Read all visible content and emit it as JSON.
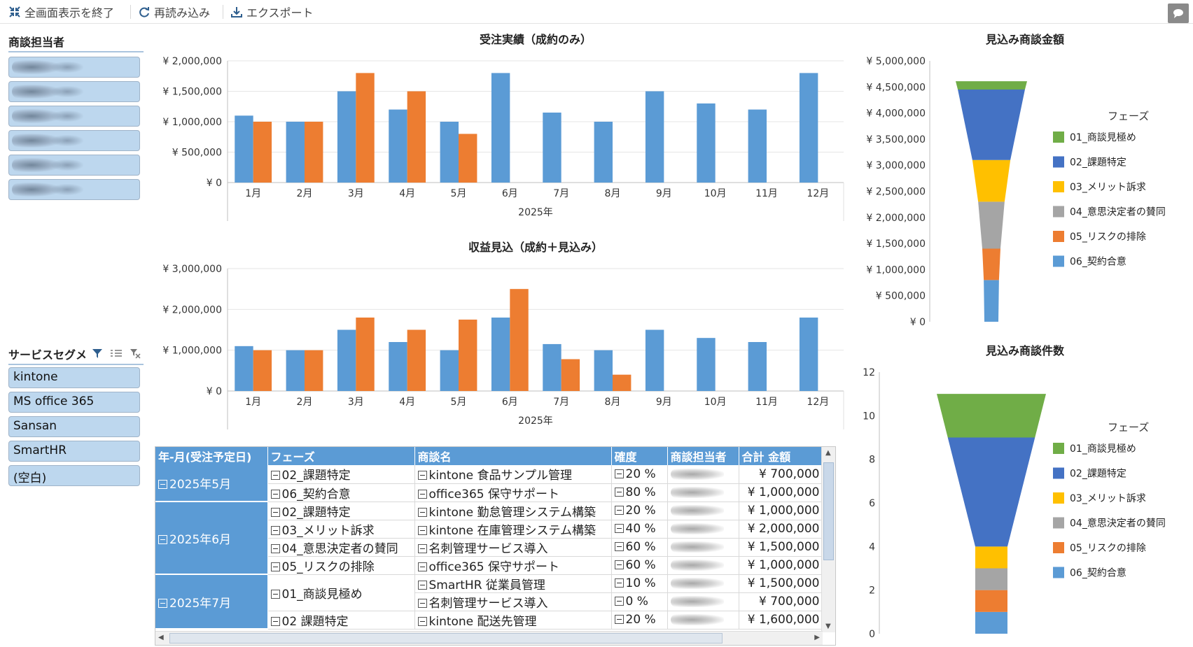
{
  "toolbar": {
    "exit_fullscreen": "全画面表示を終了",
    "reload": "再読み込み",
    "export": "エクスポート"
  },
  "slicer_rep": {
    "title": "商談担当者",
    "items_count_note": ""
  },
  "slicer_service": {
    "title": "サービスセグメ",
    "items": [
      "kintone",
      "MS office 365",
      "Sansan",
      "SmartHR",
      "(空白)"
    ]
  },
  "colors": {
    "blue": "#5b9bd5",
    "orange": "#ed7d31",
    "phase": [
      "#70ad47",
      "#4472c4",
      "#ffc000",
      "#a5a5a5",
      "#ed7d31",
      "#5b9bd5"
    ]
  },
  "chart_data": [
    {
      "type": "bar",
      "title": "受注実績（成約のみ）",
      "xlabel": "2025年",
      "categories": [
        "1月",
        "2月",
        "3月",
        "4月",
        "5月",
        "6月",
        "7月",
        "8月",
        "9月",
        "10月",
        "11月",
        "12月"
      ],
      "ytick_labels": [
        "¥ 0",
        "¥ 500,000",
        "¥ 1,000,000",
        "¥ 1,500,000",
        "¥ 2,000,000"
      ],
      "ylim": [
        0,
        2000000
      ],
      "series": [
        {
          "values": [
            1100000,
            1000000,
            1500000,
            1200000,
            1000000,
            1800000,
            1150000,
            1000000,
            1500000,
            1300000,
            1200000,
            1800000
          ]
        },
        {
          "values": [
            1000000,
            1000000,
            1800000,
            1500000,
            800000,
            0,
            0,
            0,
            0,
            0,
            0,
            0
          ]
        }
      ]
    },
    {
      "type": "bar",
      "title": "収益見込（成約＋見込み）",
      "xlabel": "2025年",
      "categories": [
        "1月",
        "2月",
        "3月",
        "4月",
        "5月",
        "6月",
        "7月",
        "8月",
        "9月",
        "10月",
        "11月",
        "12月"
      ],
      "ytick_labels": [
        "¥ 0",
        "¥ 1,000,000",
        "¥ 2,000,000",
        "¥ 3,000,000"
      ],
      "ylim": [
        0,
        3000000
      ],
      "series": [
        {
          "values": [
            1100000,
            1000000,
            1500000,
            1200000,
            1000000,
            1800000,
            1150000,
            1000000,
            1500000,
            1300000,
            1200000,
            1800000
          ]
        },
        {
          "values": [
            1000000,
            1000000,
            1800000,
            1500000,
            1750000,
            2500000,
            780000,
            400000,
            0,
            0,
            0,
            0
          ]
        }
      ]
    },
    {
      "type": "funnel",
      "title": "見込み商談金額",
      "legend_title": "フェーズ",
      "legend_position": "right",
      "ytick_labels": [
        "¥ 0",
        "¥ 500,000",
        "¥ 1,000,000",
        "¥ 1,500,000",
        "¥ 2,000,000",
        "¥ 2,500,000",
        "¥ 3,000,000",
        "¥ 3,500,000",
        "¥ 4,000,000",
        "¥ 4,500,000",
        "¥ 5,000,000"
      ],
      "ylim": [
        0,
        5000000
      ],
      "categories": [
        "06_契約合意",
        "05_リスクの排除",
        "04_意思決定者の賛同",
        "03_メリット訴求",
        "02_課題特定",
        "01_商談見極め"
      ],
      "values": [
        800000,
        600000,
        900000,
        800000,
        1350000,
        160000
      ]
    },
    {
      "type": "funnel",
      "title": "見込み商談件数",
      "legend_title": "フェーズ",
      "legend_position": "right",
      "ytick_labels": [
        "0",
        "2",
        "4",
        "6",
        "8",
        "10",
        "12"
      ],
      "ylim": [
        0,
        12
      ],
      "categories": [
        "06_契約合意",
        "05_リスクの排除",
        "04_意思決定者の賛同",
        "03_メリット訴求",
        "02_課題特定",
        "01_商談見極め"
      ],
      "values": [
        1,
        1,
        1,
        1,
        5,
        2
      ]
    }
  ],
  "legend": [
    "01_商談見極め",
    "02_課題特定",
    "03_メリット訴求",
    "04_意思決定者の賛同",
    "05_リスクの排除",
    "06_契約合意"
  ],
  "pivot": {
    "headers": [
      "年-月(受注予定日)",
      "フェーズ",
      "商談名",
      "確度",
      "商談担当者",
      "合計 金額"
    ],
    "groups": [
      {
        "month": "2025年5月",
        "rows": [
          {
            "phase": "02_課題特定",
            "name": "kintone 食品サンプル管理",
            "prob": "20 %",
            "amount": "¥ 700,000"
          },
          {
            "phase": "06_契約合意",
            "name": "office365 保守サポート",
            "prob": "80 %",
            "amount": "¥ 1,000,000"
          }
        ]
      },
      {
        "month": "2025年6月",
        "rows": [
          {
            "phase": "02_課題特定",
            "name": "kintone 勤怠管理システム構築",
            "prob": "20 %",
            "amount": "¥ 1,000,000"
          },
          {
            "phase": "03_メリット訴求",
            "name": "kintone 在庫管理システム構築",
            "prob": "40 %",
            "amount": "¥ 2,000,000"
          },
          {
            "phase": "04_意思決定者の賛同",
            "name": "名刺管理サービス導入",
            "prob": "60 %",
            "amount": "¥ 1,500,000"
          },
          {
            "phase": "05_リスクの排除",
            "name": "office365 保守サポート",
            "prob": "60 %",
            "amount": "¥ 1,000,000"
          }
        ]
      },
      {
        "month": "2025年7月",
        "rows": [
          {
            "phase": "01_商談見極め",
            "name": "SmartHR 従業員管理",
            "prob": "10 %",
            "amount": "¥ 1,500,000"
          },
          {
            "phase": "",
            "name": "名刺管理サービス導入",
            "prob": "0 %",
            "amount": "¥ 700,000"
          },
          {
            "phase": "02 課題特定",
            "name": "kintone 配送先管理",
            "prob": "20 %",
            "amount": "¥ 1,600,000"
          }
        ]
      }
    ]
  }
}
